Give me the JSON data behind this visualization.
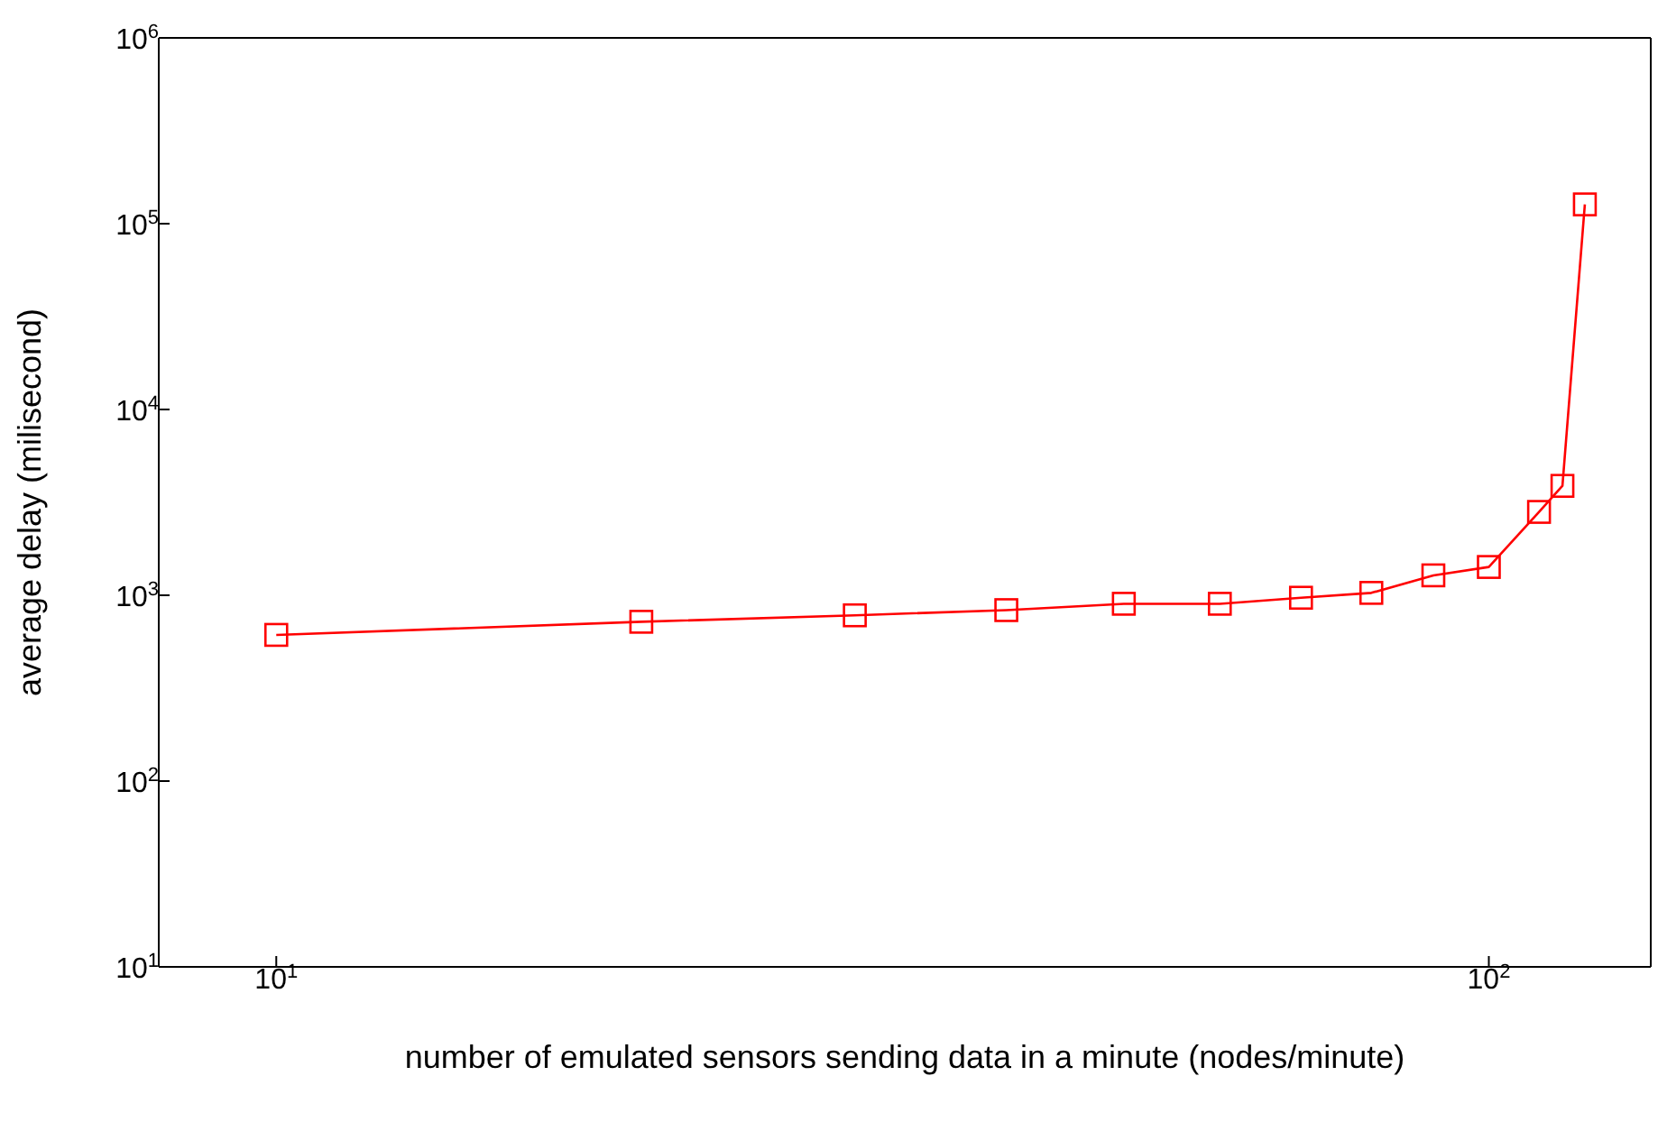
{
  "chart_data": {
    "type": "line",
    "xlabel": "number of emulated sensors sending data in a minute (nodes/minute)",
    "ylabel": "average delay (milisecond)",
    "x": [
      10,
      20,
      30,
      40,
      50,
      60,
      70,
      80,
      90,
      100,
      110,
      115,
      120
    ],
    "series": [
      {
        "color": "#ff0000",
        "values": [
          612,
          720,
          780,
          832,
          900,
          900,
          970,
          1030,
          1280,
          1420,
          2810,
          3880,
          127000
        ]
      }
    ],
    "log": "xy",
    "xlim": [
      8,
      136
    ],
    "ylim": [
      10,
      1000000
    ],
    "xticks": [
      {
        "value": 10,
        "label": "10$^{1}$"
      },
      {
        "value": 100,
        "label": "10$^{2}$"
      }
    ],
    "yticks": [
      {
        "value": 10,
        "label": "10$^{1}$"
      },
      {
        "value": 100,
        "label": "10$^{2}$"
      },
      {
        "value": 1000,
        "label": "10$^{3}$"
      },
      {
        "value": 10000,
        "label": "10$^{4}$"
      },
      {
        "value": 100000,
        "label": "10$^{5}$"
      },
      {
        "value": 1000000,
        "label": "10$^{6}$"
      }
    ],
    "marker": "square",
    "line_style": "solid"
  }
}
